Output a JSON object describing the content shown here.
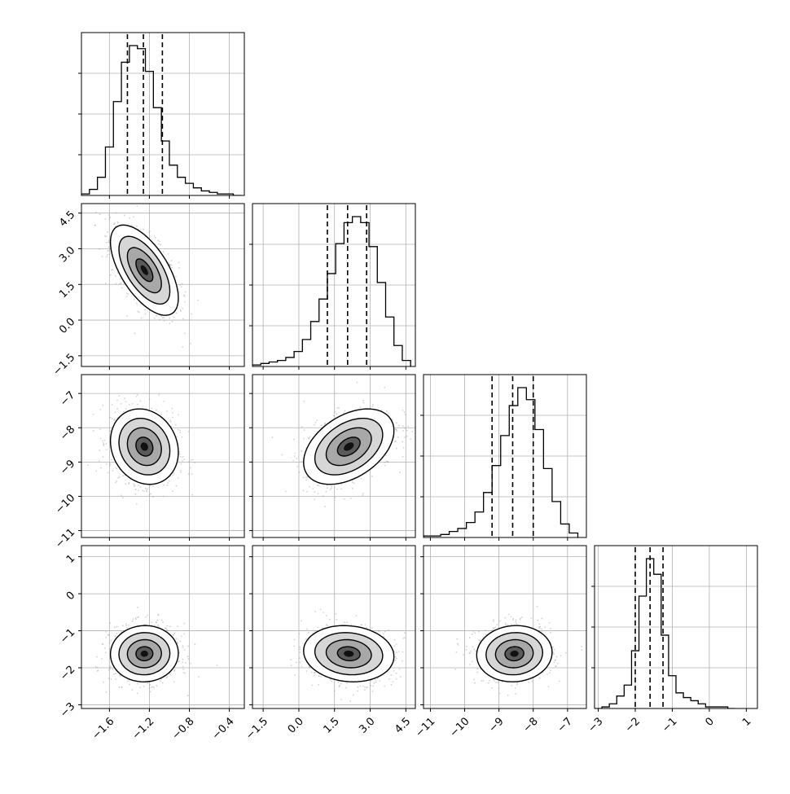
{
  "chart_data": {
    "type": "corner",
    "title": "",
    "grid": true,
    "parameters": [
      {
        "key": "p0",
        "ticks": [
          -1.6,
          -1.2,
          -0.8,
          -0.4
        ],
        "tick_labels": [
          "−1.6",
          "−1.2",
          "−0.8",
          "−0.4"
        ],
        "range": [
          -1.88,
          -0.25
        ]
      },
      {
        "key": "p1",
        "ticks": [
          -1.5,
          0.0,
          1.5,
          3.0,
          4.5
        ],
        "tick_labels": [
          "−1.5",
          "0.0",
          "1.5",
          "3.0",
          "4.5"
        ],
        "range": [
          -1.95,
          4.9
        ]
      },
      {
        "key": "p2",
        "ticks": [
          -11,
          -10,
          -9,
          -8,
          -7
        ],
        "tick_labels": [
          "−11",
          "−10",
          "−9",
          "−8",
          "−7"
        ],
        "range": [
          -11.2,
          -6.45
        ]
      },
      {
        "key": "p3",
        "ticks": [
          -3,
          -2,
          -1,
          0,
          1
        ],
        "tick_labels": [
          "−3",
          "−2",
          "−1",
          "0",
          "1"
        ],
        "range": [
          -3.1,
          1.3
        ]
      }
    ],
    "marginals": [
      {
        "param": "p0",
        "quantiles": [
          -1.42,
          -1.26,
          -1.07
        ],
        "bin_edges": [
          -1.88,
          -1.8,
          -1.72,
          -1.64,
          -1.56,
          -1.48,
          -1.4,
          -1.32,
          -1.24,
          -1.16,
          -1.08,
          -1.0,
          -0.92,
          -0.84,
          -0.76,
          -0.68,
          -0.6,
          -0.52,
          -0.44,
          -0.36,
          -0.28
        ],
        "counts": [
          0.01,
          0.04,
          0.12,
          0.32,
          0.62,
          0.88,
          0.99,
          0.97,
          0.82,
          0.58,
          0.36,
          0.2,
          0.12,
          0.08,
          0.05,
          0.03,
          0.02,
          0.01,
          0.01,
          0.0
        ]
      },
      {
        "param": "p1",
        "quantiles": [
          1.2,
          2.05,
          2.85
        ],
        "bin_edges": [
          -1.95,
          -1.6,
          -1.25,
          -0.9,
          -0.55,
          -0.2,
          0.15,
          0.5,
          0.85,
          1.2,
          1.55,
          1.9,
          2.25,
          2.6,
          2.95,
          3.3,
          3.65,
          4.0,
          4.35,
          4.7
        ],
        "counts": [
          0.01,
          0.02,
          0.03,
          0.04,
          0.06,
          0.1,
          0.18,
          0.3,
          0.45,
          0.62,
          0.82,
          0.96,
          1.0,
          0.96,
          0.8,
          0.56,
          0.33,
          0.14,
          0.04
        ]
      },
      {
        "param": "p2",
        "quantiles": [
          -9.2,
          -8.6,
          -8.0
        ],
        "bin_edges": [
          -11.2,
          -10.95,
          -10.7,
          -10.45,
          -10.2,
          -9.95,
          -9.7,
          -9.45,
          -9.2,
          -8.95,
          -8.7,
          -8.45,
          -8.2,
          -7.95,
          -7.7,
          -7.45,
          -7.2,
          -6.95,
          -6.7
        ],
        "counts": [
          0.01,
          0.01,
          0.02,
          0.04,
          0.06,
          0.1,
          0.17,
          0.3,
          0.48,
          0.68,
          0.88,
          1.0,
          0.92,
          0.72,
          0.46,
          0.24,
          0.09,
          0.03
        ]
      },
      {
        "param": "p3",
        "quantiles": [
          -2.0,
          -1.6,
          -1.25
        ],
        "bin_edges": [
          -3.1,
          -2.9,
          -2.7,
          -2.5,
          -2.3,
          -2.1,
          -1.9,
          -1.7,
          -1.5,
          -1.3,
          -1.1,
          -0.9,
          -0.7,
          -0.5,
          -0.3,
          -0.1,
          0.1,
          0.3,
          0.5,
          0.7
        ],
        "counts": [
          0.0,
          0.01,
          0.03,
          0.08,
          0.15,
          0.37,
          0.72,
          0.96,
          0.86,
          0.47,
          0.21,
          0.1,
          0.07,
          0.05,
          0.03,
          0.01,
          0.01,
          0.01,
          0.0
        ]
      }
    ],
    "pairs": [
      {
        "x": "p0",
        "y": "p1",
        "mean": [
          -1.25,
          2.1
        ],
        "sd": [
          0.17,
          0.95
        ],
        "corr": -0.62
      },
      {
        "x": "p0",
        "y": "p2",
        "mean": [
          -1.25,
          -8.55
        ],
        "sd": [
          0.17,
          0.55
        ],
        "corr": -0.15
      },
      {
        "x": "p1",
        "y": "p2",
        "mean": [
          2.1,
          -8.55
        ],
        "sd": [
          0.95,
          0.55
        ],
        "corr": 0.42
      },
      {
        "x": "p0",
        "y": "p3",
        "mean": [
          -1.25,
          -1.62
        ],
        "sd": [
          0.17,
          0.38
        ],
        "corr": 0.02
      },
      {
        "x": "p1",
        "y": "p3",
        "mean": [
          2.1,
          -1.62
        ],
        "sd": [
          0.95,
          0.38
        ],
        "corr": -0.1
      },
      {
        "x": "p2",
        "y": "p3",
        "mean": [
          -8.55,
          -1.62
        ],
        "sd": [
          0.55,
          0.38
        ],
        "corr": 0.05
      }
    ],
    "contour_levels_sigma": [
      0.5,
      1.0,
      1.5,
      2.0
    ],
    "colors": {
      "line": "#000000",
      "grid": "#b0b0b0",
      "points": "#9a9a9a"
    }
  }
}
